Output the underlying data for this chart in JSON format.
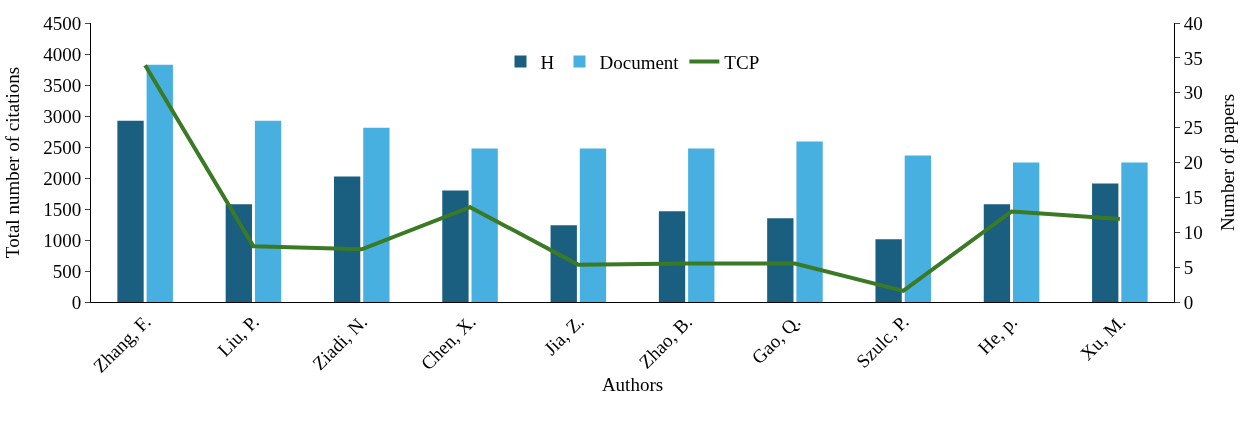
{
  "chart_data": {
    "type": "bar",
    "xlabel": "Authors",
    "ylabel": "Total number of citations",
    "y2label": "Number of papers",
    "categories": [
      "Zhang, F.",
      "Liu, P.",
      "Ziadi, N.",
      "Chen, X.",
      "Jia, Z.",
      "Zhao, B.",
      "Gao, Q.",
      "Szulc, P.",
      "He, p.",
      "Xu, M."
    ],
    "series": [
      {
        "name": "H",
        "axis": "y2",
        "color": "#1a5e80",
        "values": [
          26,
          14,
          18,
          16,
          11,
          13,
          12,
          9,
          14,
          17
        ]
      },
      {
        "name": "Document",
        "axis": "y2",
        "color": "#47b0e0",
        "values": [
          34,
          26,
          25,
          22,
          22,
          22,
          23,
          21,
          20,
          20
        ]
      },
      {
        "name": "TCP",
        "type": "line",
        "axis": "y",
        "color": "#3b7a25",
        "values": [
          3820,
          900,
          850,
          1530,
          600,
          620,
          620,
          180,
          1460,
          1340
        ]
      }
    ],
    "ylim": [
      0,
      4500
    ],
    "yticks": [
      0,
      500,
      1000,
      1500,
      2000,
      2500,
      3000,
      3500,
      4000,
      4500
    ],
    "y2lim": [
      0,
      40
    ],
    "y2ticks": [
      0,
      5,
      10,
      15,
      20,
      25,
      30,
      35,
      40
    ],
    "grid": false,
    "legend": "top",
    "marker": "none",
    "line_style": "solid"
  }
}
